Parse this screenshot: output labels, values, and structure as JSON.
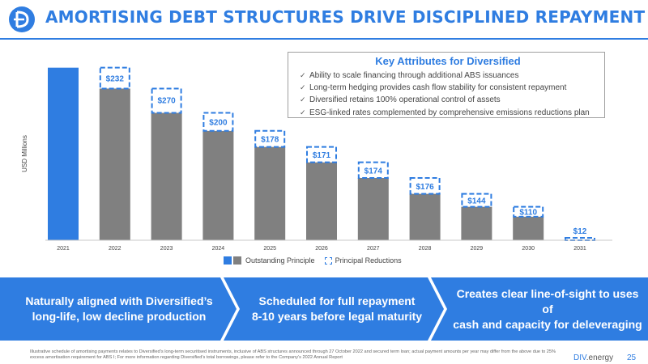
{
  "title": "AMORTISING DEBT STRUCTURES DRIVE DISCIPLINED REPAYMENT",
  "colors": {
    "accent": "#2F7DE1",
    "bar_grey": "#808080",
    "banner": "#2F7DE1",
    "banner_dark": "#2A72D3"
  },
  "key_attributes": {
    "heading": "Key Attributes for Diversified",
    "items": [
      "Ability to scale financing through additional ABS issuances",
      "Long-term hedging provides cash flow stability for consistent repayment",
      "Diversified retains 100% operational control of assets",
      "ESG-linked rates complemented by comprehensive emissions reductions plan"
    ]
  },
  "chart_data": {
    "type": "bar",
    "ylabel": "USD Millions",
    "categories": [
      "2021",
      "2022",
      "2023",
      "2024",
      "2025",
      "2026",
      "2027",
      "2028",
      "2029",
      "2030",
      "2031"
    ],
    "series": [
      {
        "name": "Outstanding Principle",
        "values": [
          1917,
          1685,
          1415,
          1215,
          1037,
          866,
          692,
          516,
          372,
          262,
          12
        ]
      },
      {
        "name": "Principal Reductions",
        "values": [
          0,
          232,
          270,
          200,
          178,
          171,
          174,
          176,
          144,
          110,
          12
        ]
      }
    ],
    "data_labels": [
      "",
      "$232",
      "$270",
      "$200",
      "$178",
      "$171",
      "$174",
      "$176",
      "$144",
      "$110",
      "$12"
    ],
    "ylim": [
      0,
      1950
    ],
    "grid": false,
    "legend_position": "bottom-center"
  },
  "legend": {
    "outstanding": "Outstanding Principle",
    "reductions": "Principal Reductions"
  },
  "banners": [
    {
      "line1": "Naturally aligned with Diversified’s",
      "line2": "long-life, low decline production"
    },
    {
      "line1": "Scheduled for full repayment",
      "line2": "8-10 years before legal maturity"
    },
    {
      "line1": "Creates clear line-of-sight to uses of",
      "line2": "cash and capacity for deleveraging"
    }
  ],
  "footnote": "Illustrative schedule of amortising payments relates to Diversified’s long-term securitised instruments, inclusive of ABS structures announced through 27 October 2022 and secured term loan; actual payment amounts per year may differ from the above due to 25% excess amortisation requirement for ABS I; For more information regarding Diversified’s total borrowings, please refer to the Company’s 2022 Annual Report",
  "brand": {
    "name": "DIV",
    "suffix": ".energy"
  },
  "page_number": "25"
}
